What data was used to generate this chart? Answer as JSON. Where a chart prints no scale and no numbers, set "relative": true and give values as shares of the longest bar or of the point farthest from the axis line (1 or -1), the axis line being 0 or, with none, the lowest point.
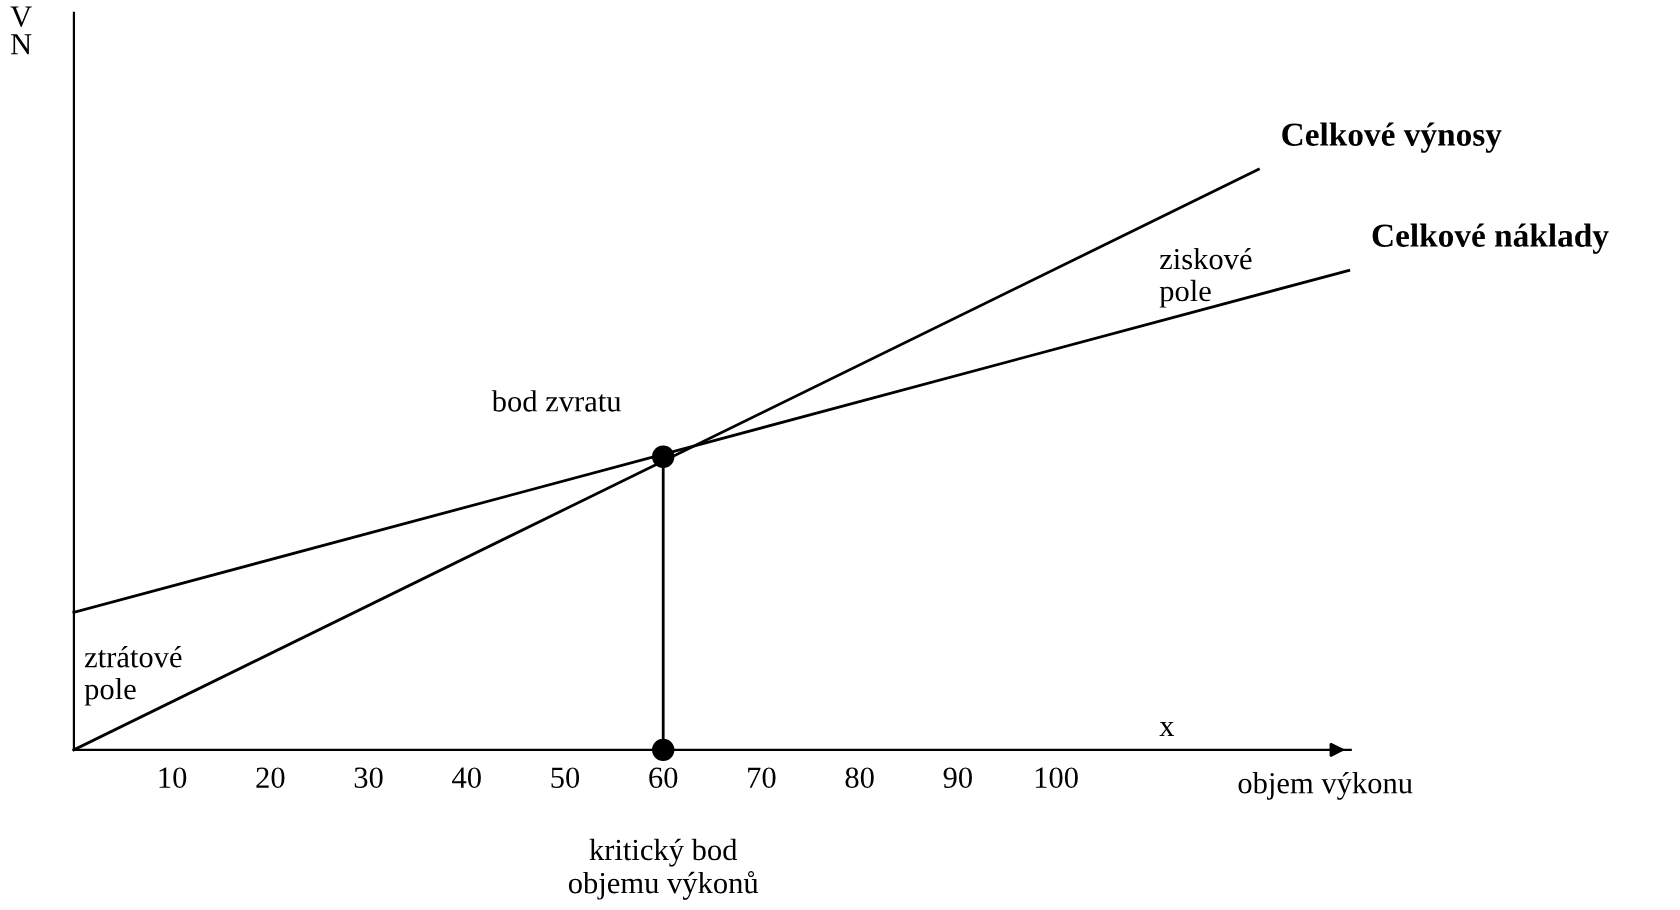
{
  "chart_data": {
    "type": "line",
    "relative": true,
    "xlabel": "objem výkonu",
    "ylabel": "V\nN",
    "xlim": [
      0,
      130
    ],
    "xticks": [
      10,
      20,
      30,
      40,
      50,
      60,
      70,
      80,
      90,
      100
    ],
    "tick_labels": "x",
    "grid": false,
    "series": [
      {
        "name": "Celkové výnosy",
        "color": "#000000",
        "x": [
          0,
          120.6
        ],
        "values": [
          0,
          1
        ]
      },
      {
        "name": "Celkové náklady",
        "color": "#000000",
        "x": [
          0,
          129.8
        ],
        "values": [
          0.237,
          0.826
        ]
      },
      {
        "color": "#000000",
        "x": [
          60,
          60
        ],
        "values": [
          0,
          0.505
        ]
      },
      {
        "type": "scatter",
        "marker": "circle",
        "color": "#000000",
        "x": [
          60,
          60
        ],
        "values": [
          0.505,
          0
        ]
      }
    ],
    "annotations": [
      {
        "text": "bod zvratu",
        "x": 60,
        "y": 0.505
      },
      {
        "text": "kritický bod\nobjemu výkonů",
        "x": 60,
        "y": 0
      },
      "ziskové\npole",
      "ztrátové\npole",
      "x"
    ]
  }
}
